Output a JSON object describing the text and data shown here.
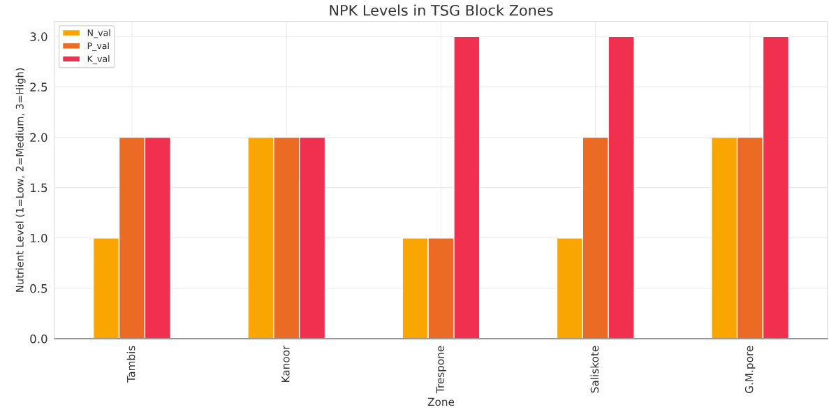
{
  "chart_data": {
    "type": "bar",
    "title": "NPK Levels in TSG Block Zones",
    "xlabel": "Zone",
    "ylabel": "Nutrient Level (1=Low, 2=Medium, 3=High)",
    "categories": [
      "Tambis",
      "Kanoor",
      "Trespone",
      "Saliskote",
      "G.M.pore"
    ],
    "series": [
      {
        "name": "N_val",
        "color": "#f9a602",
        "values": [
          1,
          2,
          1,
          1,
          2
        ]
      },
      {
        "name": "P_val",
        "color": "#ec6b24",
        "values": [
          2,
          2,
          1,
          2,
          2
        ]
      },
      {
        "name": "K_val",
        "color": "#f1304f",
        "values": [
          2,
          2,
          3,
          3,
          3
        ]
      }
    ],
    "ylim": [
      0,
      3.15
    ],
    "yticks": [
      {
        "value": 0,
        "label": "0.0"
      },
      {
        "value": 0.5,
        "label": "0.5"
      },
      {
        "value": 1,
        "label": "1.0"
      },
      {
        "value": 1.5,
        "label": "1.5"
      },
      {
        "value": 2,
        "label": "2.0"
      },
      {
        "value": 2.5,
        "label": "2.5"
      },
      {
        "value": 3,
        "label": "3.0"
      }
    ],
    "grid": true,
    "legend": "top left"
  }
}
